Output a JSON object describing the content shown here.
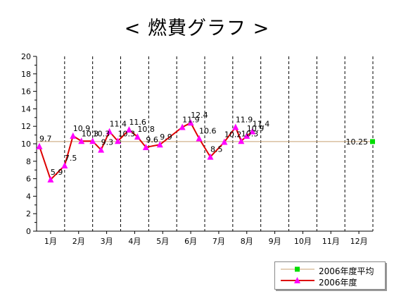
{
  "title": "< 燃費グラフ >",
  "chart_data": {
    "type": "line",
    "title": "< 燃費グラフ >",
    "categories": [
      "1月",
      "2月",
      "3月",
      "4月",
      "5月",
      "6月",
      "7月",
      "8月",
      "9月",
      "10月",
      "11月",
      "12月"
    ],
    "ylim": [
      0,
      20
    ],
    "y_ticks": [
      "0",
      "2",
      "4",
      "6",
      "8",
      "10",
      "12",
      "14",
      "16",
      "18",
      "20"
    ],
    "grid": "vertical dashed lines between months",
    "legend_position": "bottom-right",
    "series": [
      {
        "name": "2006年度平均",
        "color": "#c8a070",
        "marker_color": "#00dd00",
        "value": 10.25,
        "label": "10.25"
      },
      {
        "name": "2006年度",
        "color": "#dd0000",
        "marker_color": "#ff00ff",
        "x": [
          0.1,
          0.5,
          1.0,
          1.3,
          1.6,
          2.0,
          2.3,
          2.6,
          2.9,
          3.3,
          3.6,
          3.9,
          4.4,
          5.2,
          5.5,
          5.8,
          6.2,
          6.7,
          7.1,
          7.3,
          7.5,
          7.7
        ],
        "values": [
          9.7,
          5.9,
          7.5,
          10.9,
          10.3,
          10.3,
          9.3,
          11.4,
          10.3,
          11.6,
          10.8,
          9.6,
          9.9,
          11.9,
          12.4,
          10.6,
          8.5,
          10.2,
          11.9,
          10.3,
          10.9,
          11.4
        ],
        "labels": [
          "9.7",
          "5.9",
          "7.5",
          "10.9",
          "10.3",
          "10.3",
          "9.3",
          "11.4",
          "10.3",
          "11.6",
          "10.8",
          "9.6",
          "9.9",
          "11.9",
          "12.4",
          "10.6",
          "8.5",
          "10.2",
          "11.9",
          "10.3",
          "10.9",
          "11.4"
        ]
      }
    ]
  }
}
